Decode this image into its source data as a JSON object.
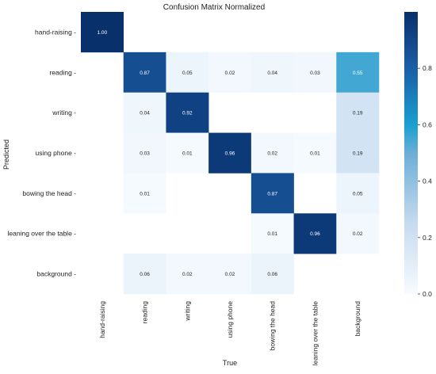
{
  "chart_data": {
    "type": "heatmap",
    "title": "Confusion Matrix Normalized",
    "xlabel": "True",
    "ylabel": "Predicted",
    "x_categories": [
      "hand-raising",
      "reading",
      "writing",
      "using phone",
      "bowing the head",
      "leaning over the table",
      "background"
    ],
    "y_categories": [
      "hand-raising",
      "reading",
      "writing",
      "using phone",
      "bowing the head",
      "leaning over the table",
      "background"
    ],
    "values": [
      [
        1.0,
        null,
        null,
        null,
        null,
        null,
        null
      ],
      [
        null,
        0.87,
        0.05,
        0.02,
        0.04,
        0.03,
        0.55
      ],
      [
        null,
        0.04,
        0.92,
        null,
        null,
        null,
        0.19
      ],
      [
        null,
        0.03,
        0.01,
        0.96,
        0.02,
        0.01,
        0.19
      ],
      [
        null,
        0.01,
        null,
        null,
        0.87,
        null,
        0.05
      ],
      [
        null,
        null,
        null,
        null,
        0.01,
        0.96,
        0.02
      ],
      [
        null,
        0.06,
        0.02,
        0.02,
        0.06,
        null,
        null
      ]
    ],
    "colorbar": {
      "range": [
        0.0,
        1.0
      ],
      "ticks": [
        "0.0",
        "0.2",
        "0.4",
        "0.6",
        "0.8"
      ]
    },
    "colormap": "Blues"
  }
}
